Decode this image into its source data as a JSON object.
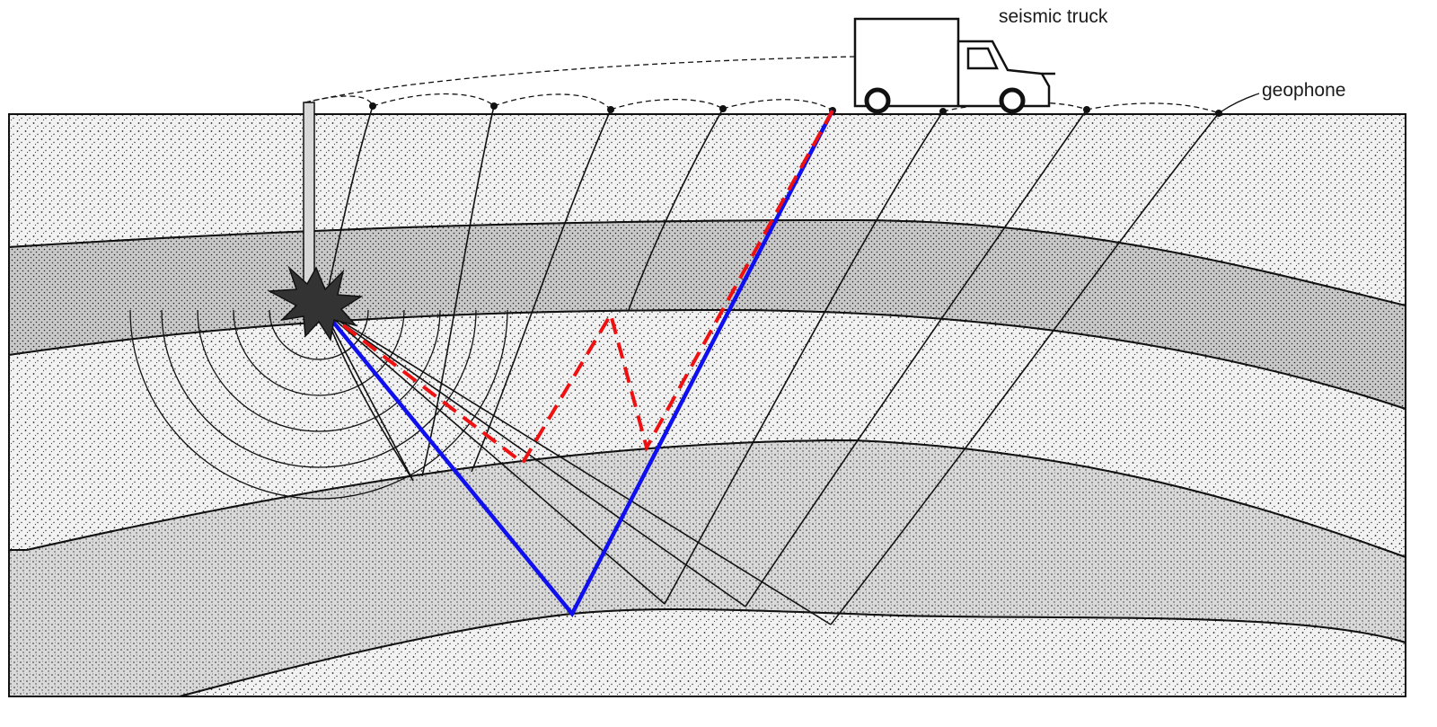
{
  "labels": {
    "truck": "seismic truck",
    "geophone": "geophone"
  },
  "colors": {
    "layer_light": "#efefef",
    "layer_dark": "#cfcfcf",
    "ink": "#111111",
    "direct_reflection": "#1010ee",
    "multiple_reflection": "#ee1111"
  }
}
